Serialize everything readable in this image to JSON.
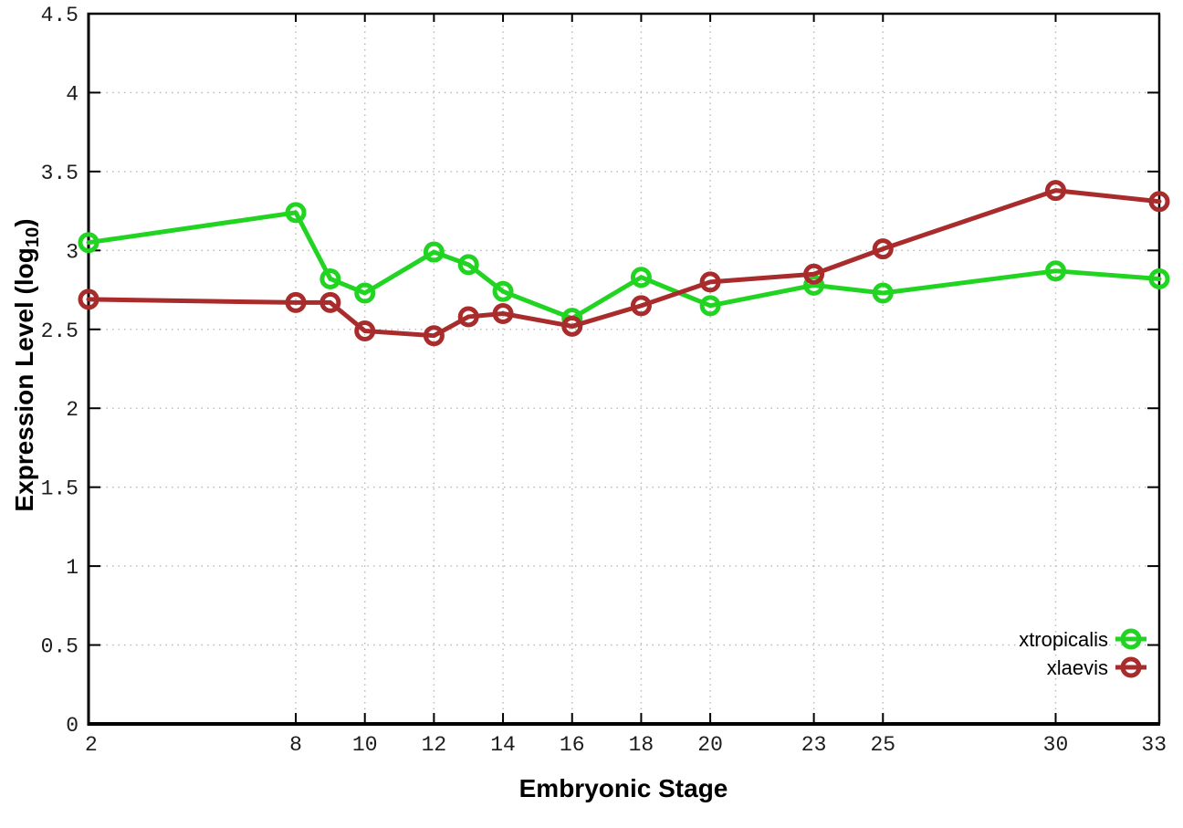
{
  "chart_data": {
    "type": "line",
    "title": "",
    "xlabel": "Embryonic Stage",
    "ylabel": "Expression Level (log10)",
    "ylabel_parts": {
      "prefix": "Expression Level (log",
      "sub": "10",
      "suffix": ")"
    },
    "x": [
      2,
      8,
      9,
      10,
      12,
      13,
      14,
      16,
      18,
      20,
      23,
      25,
      30,
      33
    ],
    "series": [
      {
        "name": "xtropicalis",
        "color": "#22d422",
        "values": [
          3.05,
          3.24,
          2.82,
          2.73,
          2.99,
          2.91,
          2.74,
          2.57,
          2.83,
          2.65,
          2.78,
          2.73,
          2.87,
          2.82
        ]
      },
      {
        "name": "xlaevis",
        "color": "#a92c2c",
        "values": [
          2.69,
          2.67,
          2.67,
          2.49,
          2.46,
          2.58,
          2.6,
          2.52,
          2.65,
          2.8,
          2.85,
          3.01,
          3.38,
          3.31
        ]
      }
    ],
    "xlim": [
      2,
      33
    ],
    "ylim": [
      0,
      4.5
    ],
    "x_ticks": [
      2,
      8,
      10,
      12,
      14,
      16,
      18,
      20,
      23,
      25,
      30,
      33
    ],
    "y_ticks": [
      0,
      0.5,
      1,
      1.5,
      2,
      2.5,
      3,
      3.5,
      4,
      4.5
    ],
    "grid": true,
    "grid_style": "dotted",
    "legend_position": "inside-bottom-right",
    "colors": {
      "background": "#ffffff",
      "border": "#000000",
      "grid": "#b8b8b8",
      "tick_text": "#1c1c1c"
    },
    "marker": "open-circle"
  }
}
